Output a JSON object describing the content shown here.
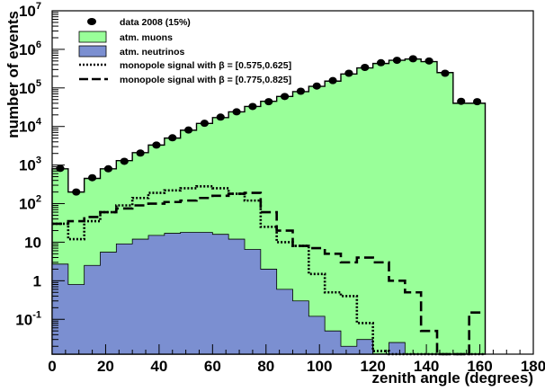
{
  "chart_data": {
    "type": "histogram",
    "xlabel": "zenith angle (degrees)",
    "ylabel": "number of events",
    "xlim": [
      0,
      180
    ],
    "ylim": [
      0.0125,
      10000000
    ],
    "y_scale": "log",
    "bin_width": 6,
    "x_ticks": [
      "0",
      "20",
      "40",
      "60",
      "80",
      "100",
      "120",
      "140",
      "160",
      "180"
    ],
    "y_ticks": [
      {
        "value": 0.1,
        "base": "10",
        "exp": "-1"
      },
      {
        "value": 1,
        "base": "1",
        "exp": ""
      },
      {
        "value": 10,
        "base": "10",
        "exp": ""
      },
      {
        "value": 100,
        "base": "10",
        "exp": "2"
      },
      {
        "value": 1000,
        "base": "10",
        "exp": "3"
      },
      {
        "value": 10000,
        "base": "10",
        "exp": "4"
      },
      {
        "value": 100000,
        "base": "10",
        "exp": "5"
      },
      {
        "value": 1000000,
        "base": "10",
        "exp": "6"
      },
      {
        "value": 10000000,
        "base": "10",
        "exp": "7"
      }
    ],
    "legend": [
      {
        "key": "data",
        "label": "data 2008 (15%)"
      },
      {
        "key": "muons",
        "label": "atm. muons"
      },
      {
        "key": "neutrinos",
        "label": "atm. neutrinos"
      },
      {
        "key": "mono1",
        "label": "monopole signal with β = [0.575,0.625]"
      },
      {
        "key": "mono2",
        "label": "monopole signal with β = [0.775,0.825]"
      }
    ],
    "series": [
      {
        "key": "muons",
        "values": [
          800,
          200,
          450,
          800,
          1300,
          2100,
          3300,
          5000,
          8000,
          12000,
          17000,
          24000,
          33000,
          45000,
          60000,
          80000,
          110000,
          150000,
          230000,
          330000,
          430000,
          520000,
          560000,
          480000,
          250000,
          40000,
          40000
        ]
      },
      {
        "key": "neutrinos",
        "values": [
          2.7,
          0.8,
          2.5,
          5.5,
          9,
          12,
          15,
          17,
          18,
          18,
          16,
          12,
          6.5,
          2,
          0.6,
          0.3,
          0.12,
          0.05,
          0.02,
          0.03,
          0.012,
          0.025,
          0.012,
          0.012,
          0.012,
          0.012,
          0.012
        ]
      },
      {
        "key": "data",
        "values": [
          820,
          200,
          470,
          800,
          1250,
          2050,
          3300,
          5100,
          8100,
          12100,
          17500,
          24000,
          33000,
          44000,
          60000,
          82000,
          112000,
          155000,
          240000,
          340000,
          450000,
          520000,
          570000,
          500000,
          240000,
          45000,
          44000
        ]
      },
      {
        "key": "mono1",
        "values": [
          30,
          12,
          35,
          60,
          90,
          140,
          190,
          220,
          250,
          280,
          250,
          180,
          120,
          25,
          10,
          8,
          1.5,
          0.5,
          0.4,
          0.08,
          0.015,
          0.012,
          0.012,
          0.012,
          0.012,
          0.012,
          0.012
        ]
      },
      {
        "key": "mono2",
        "values": [
          30,
          35,
          45,
          60,
          75,
          90,
          100,
          110,
          120,
          140,
          160,
          180,
          190,
          60,
          20,
          8,
          7,
          5,
          3,
          4,
          3,
          1,
          0.5,
          0.05,
          0.012,
          0.012,
          0.15
        ]
      }
    ],
    "colors": {
      "muons": "#99ff99",
      "neutrinos": "#7b8fd1",
      "data": "#000000",
      "mono1": "#000000",
      "mono2": "#000000"
    },
    "grid": false,
    "legend_position": "top-left"
  }
}
